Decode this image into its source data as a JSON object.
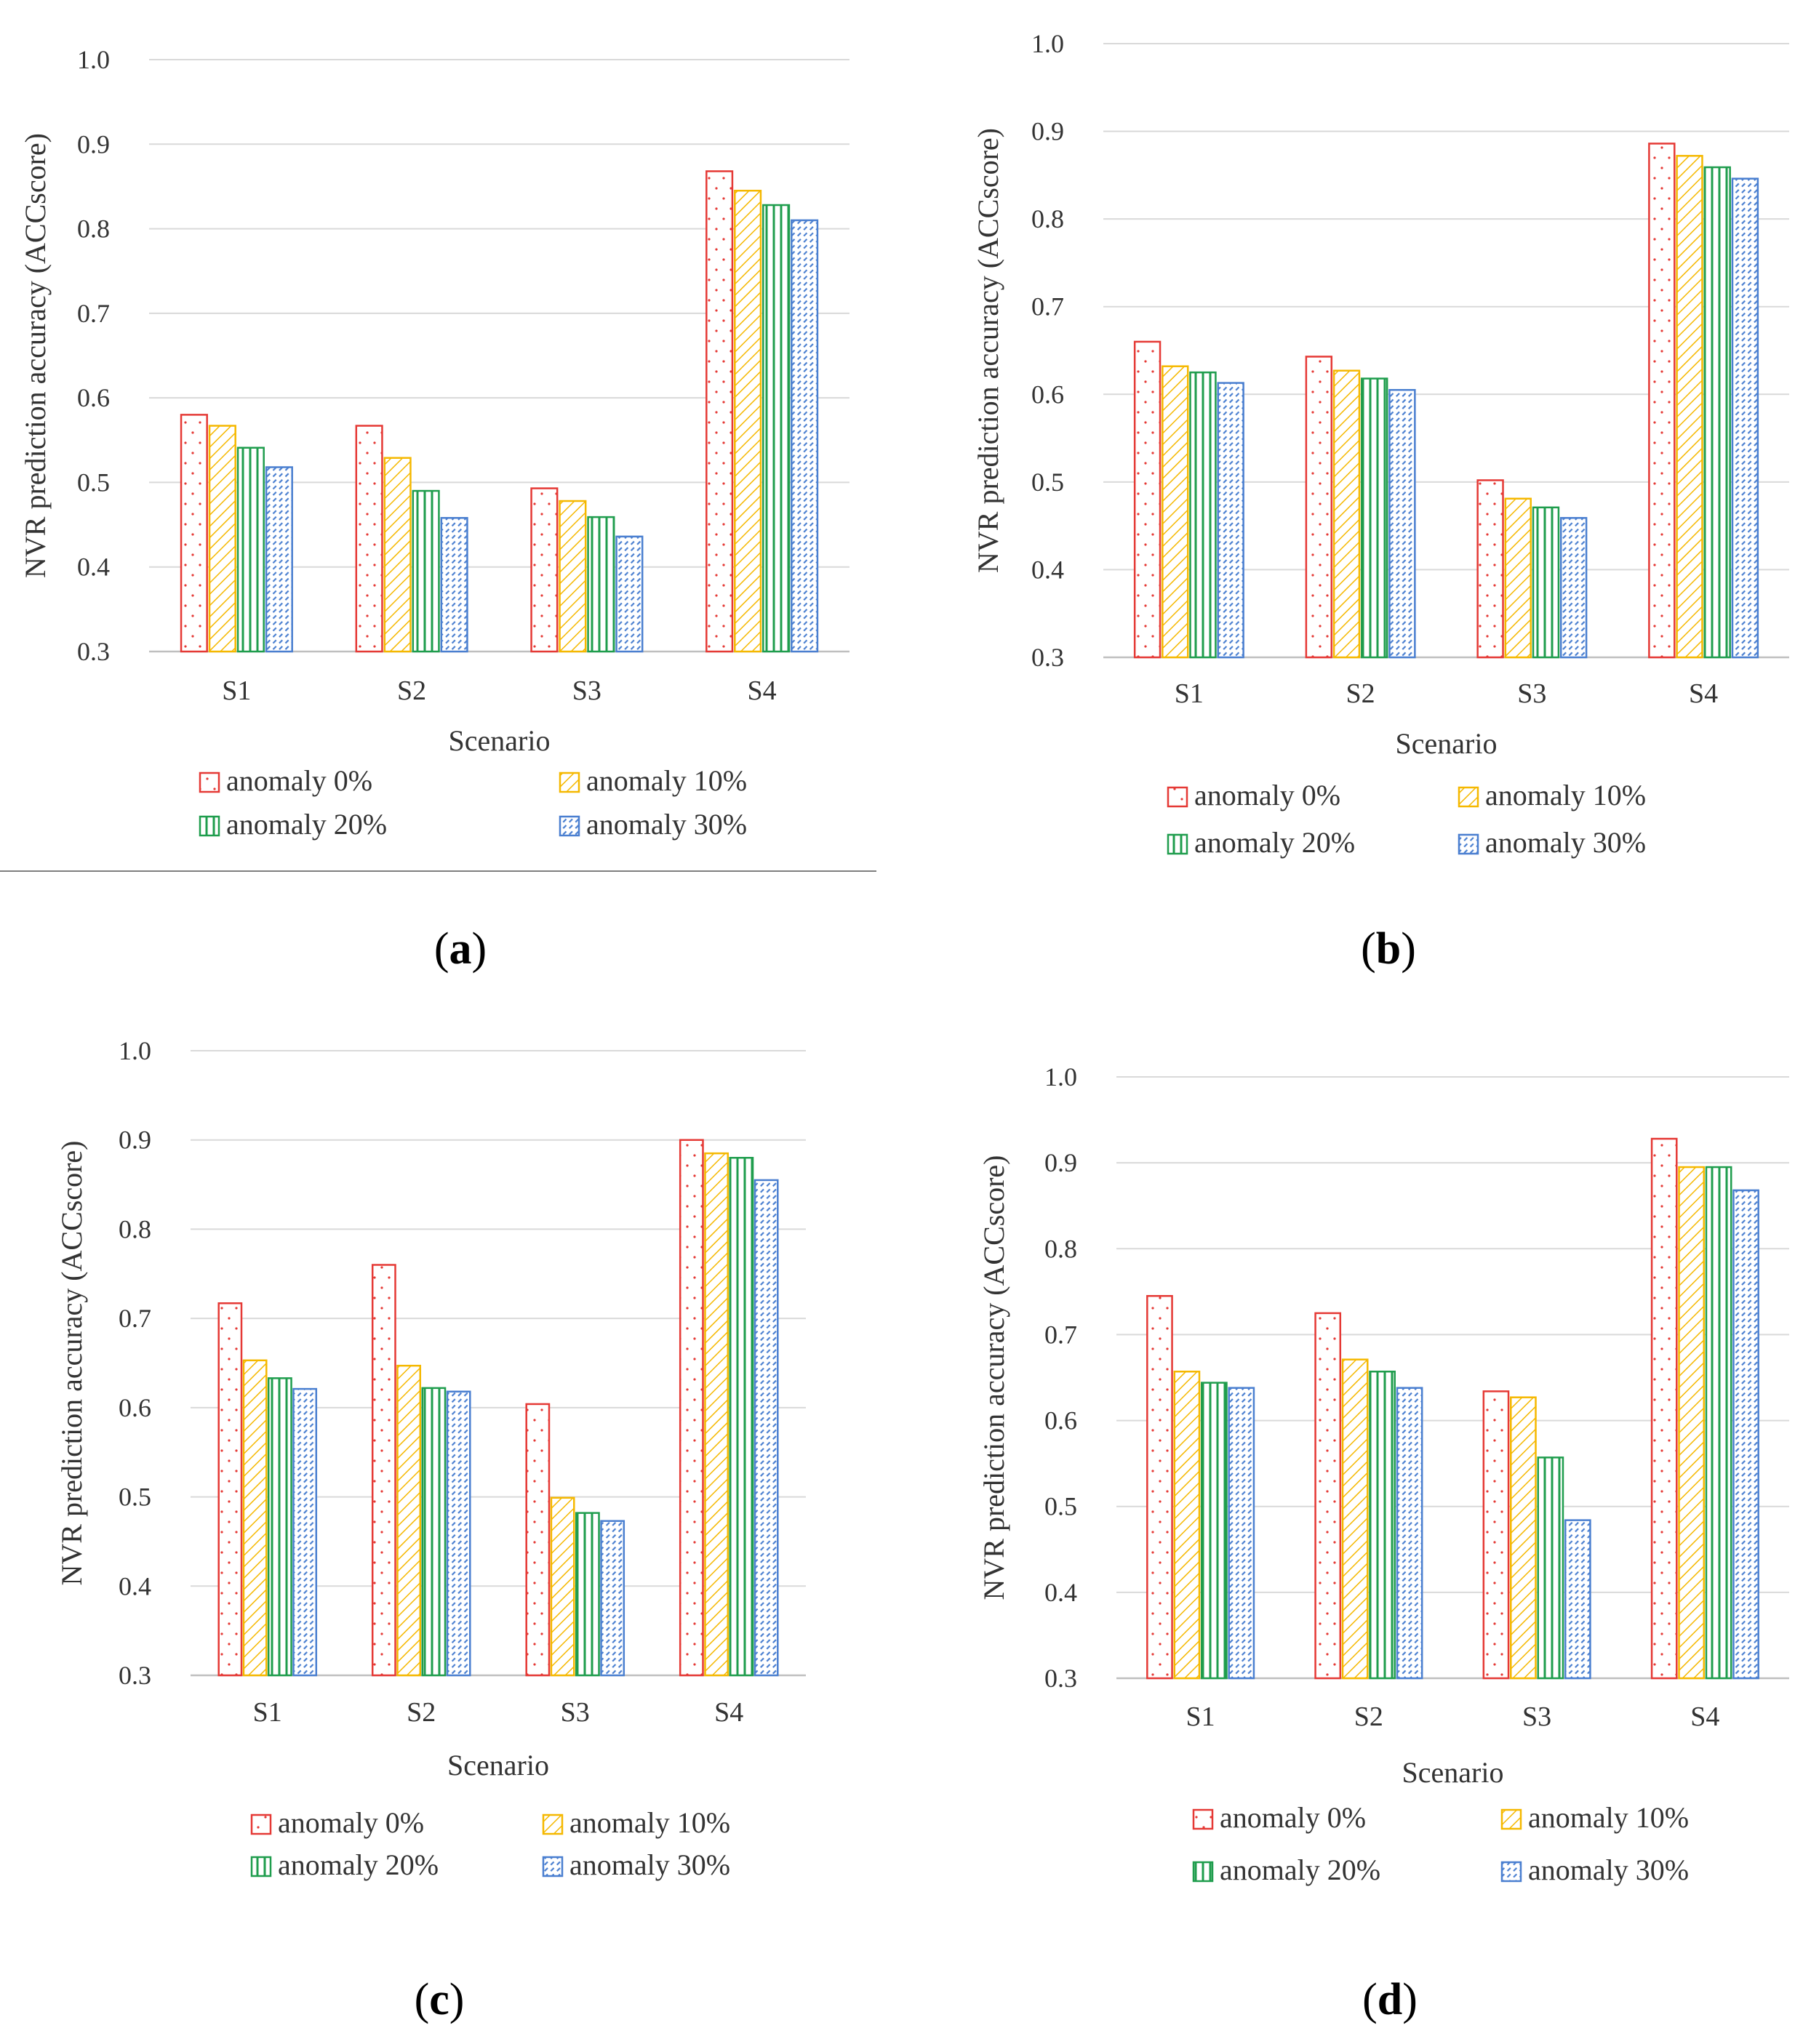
{
  "colors": {
    "anomaly_0": "#e53935",
    "anomaly_10": "#f5b800",
    "anomaly_20": "#1f9d4d",
    "anomaly_30": "#4a7fd0",
    "gridline": "#d9d9d9",
    "baseline": "#bfbfbf"
  },
  "chart_data": [
    {
      "panel": "a",
      "type": "bar",
      "categories": [
        "S1",
        "S2",
        "S3",
        "S4"
      ],
      "series": [
        {
          "name": "anomaly 0%",
          "values": [
            0.58,
            0.567,
            0.493,
            0.868
          ]
        },
        {
          "name": "anomaly 10%",
          "values": [
            0.567,
            0.529,
            0.478,
            0.845
          ]
        },
        {
          "name": "anomaly 20%",
          "values": [
            0.541,
            0.49,
            0.459,
            0.828
          ]
        },
        {
          "name": "anomaly 30%",
          "values": [
            0.518,
            0.458,
            0.436,
            0.81
          ]
        }
      ],
      "title": "",
      "xlabel": "Scenario",
      "ylabel": "NVR prediction accuracy (ACCscore)",
      "ylim": [
        0.3,
        1.0
      ],
      "yticks": [
        "1.0",
        "0.9",
        "0.8",
        "0.7",
        "0.6",
        "0.5",
        "0.4",
        "0.3"
      ],
      "grid": true,
      "legend": "bottom",
      "label_prefix": "(",
      "label_letter": "a",
      "label_suffix": ")"
    },
    {
      "panel": "b",
      "type": "bar",
      "categories": [
        "S1",
        "S2",
        "S3",
        "S4"
      ],
      "series": [
        {
          "name": "anomaly 0%",
          "values": [
            0.66,
            0.643,
            0.502,
            0.886
          ]
        },
        {
          "name": "anomaly 10%",
          "values": [
            0.632,
            0.627,
            0.481,
            0.872
          ]
        },
        {
          "name": "anomaly 20%",
          "values": [
            0.625,
            0.618,
            0.471,
            0.859
          ]
        },
        {
          "name": "anomaly 30%",
          "values": [
            0.613,
            0.605,
            0.459,
            0.846
          ]
        }
      ],
      "title": "",
      "xlabel": "Scenario",
      "ylabel": "NVR prediction accuracy (ACCscore)",
      "ylim": [
        0.3,
        1.0
      ],
      "yticks": [
        "1.0",
        "0.9",
        "0.8",
        "0.7",
        "0.6",
        "0.5",
        "0.4",
        "0.3"
      ],
      "grid": true,
      "legend": "bottom",
      "label_prefix": "(",
      "label_letter": "b",
      "label_suffix": ")"
    },
    {
      "panel": "c",
      "type": "bar",
      "categories": [
        "S1",
        "S2",
        "S3",
        "S4"
      ],
      "series": [
        {
          "name": "anomaly 0%",
          "values": [
            0.717,
            0.76,
            0.604,
            0.9
          ]
        },
        {
          "name": "anomaly 10%",
          "values": [
            0.653,
            0.647,
            0.499,
            0.885
          ]
        },
        {
          "name": "anomaly 20%",
          "values": [
            0.633,
            0.622,
            0.482,
            0.88
          ]
        },
        {
          "name": "anomaly 30%",
          "values": [
            0.621,
            0.618,
            0.473,
            0.855
          ]
        }
      ],
      "title": "",
      "xlabel": "Scenario",
      "ylabel": "NVR prediction accuracy (ACCscore)",
      "ylim": [
        0.3,
        1.0
      ],
      "yticks": [
        "1.0",
        "0.9",
        "0.8",
        "0.7",
        "0.6",
        "0.5",
        "0.4",
        "0.3"
      ],
      "grid": true,
      "legend": "bottom",
      "label_prefix": "(",
      "label_letter": "c",
      "label_suffix": ")"
    },
    {
      "panel": "d",
      "type": "bar",
      "categories": [
        "S1",
        "S2",
        "S3",
        "S4"
      ],
      "series": [
        {
          "name": "anomaly 0%",
          "values": [
            0.745,
            0.725,
            0.634,
            0.928
          ]
        },
        {
          "name": "anomaly 10%",
          "values": [
            0.657,
            0.671,
            0.627,
            0.895
          ]
        },
        {
          "name": "anomaly 20%",
          "values": [
            0.644,
            0.657,
            0.557,
            0.895
          ]
        },
        {
          "name": "anomaly 30%",
          "values": [
            0.638,
            0.638,
            0.484,
            0.868
          ]
        }
      ],
      "title": "",
      "xlabel": "Scenario",
      "ylabel": "NVR prediction accuracy (ACCscore)",
      "ylim": [
        0.3,
        1.0
      ],
      "yticks": [
        "1.0",
        "0.9",
        "0.8",
        "0.7",
        "0.6",
        "0.5",
        "0.4",
        "0.3"
      ],
      "grid": true,
      "legend": "bottom",
      "label_prefix": "(",
      "label_letter": "d",
      "label_suffix": ")"
    }
  ]
}
